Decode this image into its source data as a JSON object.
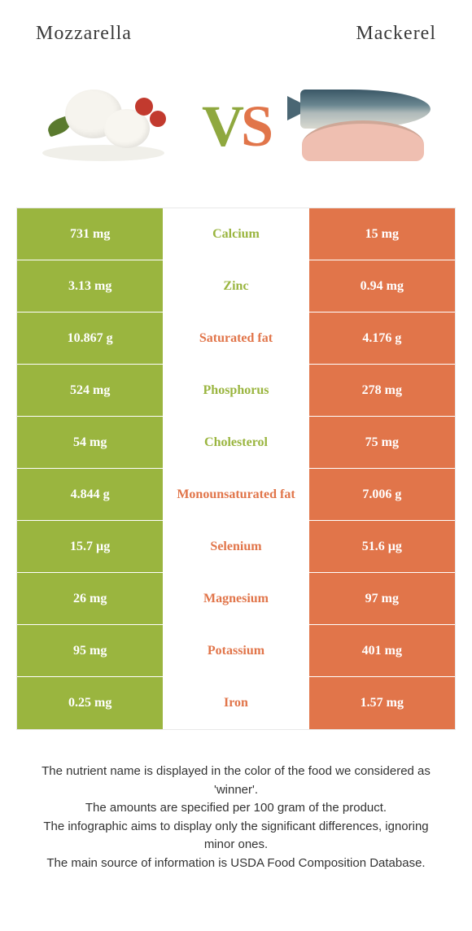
{
  "colors": {
    "left": "#9ab53f",
    "right": "#e1754a",
    "background": "#ffffff"
  },
  "header": {
    "left_title": "Mozzarella",
    "right_title": "Mackerel"
  },
  "vs": {
    "v": "V",
    "s": "S"
  },
  "rows": [
    {
      "left": "731 mg",
      "label": "Calcium",
      "right": "15 mg",
      "winner": "left"
    },
    {
      "left": "3.13 mg",
      "label": "Zinc",
      "right": "0.94 mg",
      "winner": "left"
    },
    {
      "left": "10.867 g",
      "label": "Saturated fat",
      "right": "4.176 g",
      "winner": "right"
    },
    {
      "left": "524 mg",
      "label": "Phosphorus",
      "right": "278 mg",
      "winner": "left"
    },
    {
      "left": "54 mg",
      "label": "Cholesterol",
      "right": "75 mg",
      "winner": "left"
    },
    {
      "left": "4.844 g",
      "label": "Monounsaturated fat",
      "right": "7.006 g",
      "winner": "right"
    },
    {
      "left": "15.7 µg",
      "label": "Selenium",
      "right": "51.6 µg",
      "winner": "right"
    },
    {
      "left": "26 mg",
      "label": "Magnesium",
      "right": "97 mg",
      "winner": "right"
    },
    {
      "left": "95 mg",
      "label": "Potassium",
      "right": "401 mg",
      "winner": "right"
    },
    {
      "left": "0.25 mg",
      "label": "Iron",
      "right": "1.57 mg",
      "winner": "right"
    }
  ],
  "footnotes": [
    "The nutrient name is displayed in the color of the food we considered as 'winner'.",
    "The amounts are specified per 100 gram of the product.",
    "The infographic aims to display only the significant differences, ignoring minor ones.",
    "The main source of information is USDA Food Composition Database."
  ]
}
